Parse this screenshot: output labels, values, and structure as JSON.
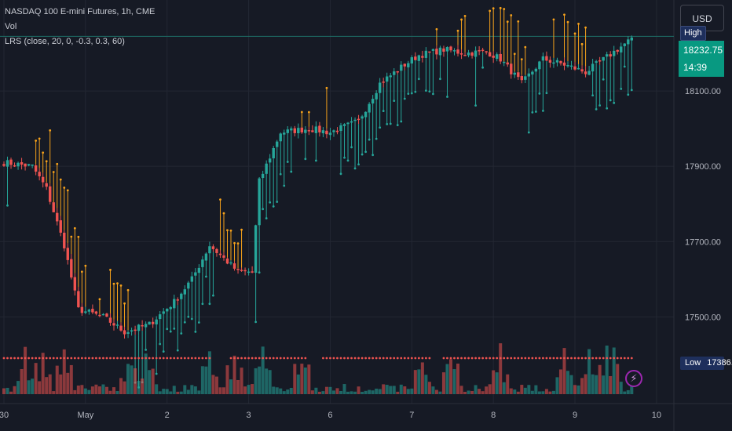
{
  "legend": {
    "symbol": "NASDAQ 100 E-mini Futures, 1h, CME",
    "volume": "Vol",
    "indicator": "LRS (close, 20, 0, -0.3, 0.3, 60)"
  },
  "price_scale": {
    "currency": "USD",
    "high_label": "High",
    "low_label": "Low",
    "low_value": "17386.25",
    "last_price": "18232.75",
    "countdown": "14:39"
  },
  "colors": {
    "background": "#161a25",
    "up": "#26a69a",
    "down": "#ef5350",
    "signal": "#f7a21b",
    "grid": "#232733",
    "last_price_bg": "#089981"
  },
  "chart_data": {
    "type": "candlestick",
    "ylim": [
      17380,
      18300
    ],
    "y_ticks": [
      "18100.00",
      "17900.00",
      "17700.00",
      "17500.00"
    ],
    "y_tick_values": [
      18100,
      17900,
      17700,
      17500
    ],
    "x_ticks": [
      "30",
      "May",
      "2",
      "3",
      "6",
      "7",
      "8",
      "9",
      "10"
    ],
    "x_tick_index": [
      0,
      23,
      46,
      69,
      92,
      115,
      138,
      161,
      184
    ],
    "high_line": 18245,
    "close_anchors": [
      [
        0,
        17910
      ],
      [
        8,
        17900
      ],
      [
        12,
        17840
      ],
      [
        17,
        17690
      ],
      [
        21,
        17520
      ],
      [
        28,
        17500
      ],
      [
        34,
        17460
      ],
      [
        41,
        17480
      ],
      [
        48,
        17540
      ],
      [
        53,
        17600
      ],
      [
        58,
        17690
      ],
      [
        66,
        17620
      ],
      [
        70,
        17620
      ],
      [
        72,
        17860
      ],
      [
        78,
        17990
      ],
      [
        86,
        18000
      ],
      [
        92,
        17990
      ],
      [
        100,
        18020
      ],
      [
        106,
        18120
      ],
      [
        113,
        18170
      ],
      [
        117,
        18195
      ],
      [
        124,
        18210
      ],
      [
        130,
        18200
      ],
      [
        136,
        18205
      ],
      [
        140,
        18185
      ],
      [
        146,
        18120
      ],
      [
        152,
        18185
      ],
      [
        158,
        18170
      ],
      [
        164,
        18150
      ],
      [
        170,
        18190
      ],
      [
        176,
        18232
      ]
    ],
    "volume_spikes": [
      6,
      11,
      17,
      35,
      40,
      58,
      65,
      73,
      84,
      118,
      126,
      140,
      158,
      165,
      170,
      172
    ]
  }
}
